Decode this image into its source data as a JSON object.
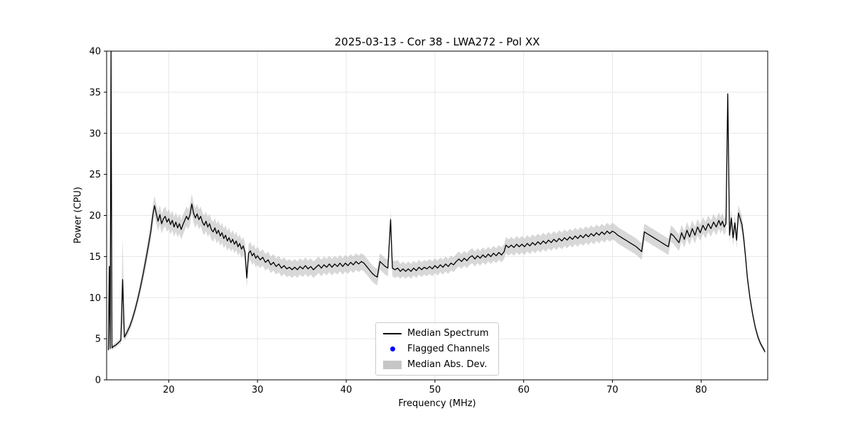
{
  "chart_data": {
    "type": "line",
    "title": "2025-03-13 - Cor 38 - LWA272 - Pol XX",
    "xlabel": "Frequency (MHz)",
    "ylabel": "Power (CPU)",
    "xlim": [
      13,
      87.5
    ],
    "ylim": [
      0,
      40
    ],
    "xticks": [
      20,
      30,
      40,
      50,
      60,
      70,
      80
    ],
    "yticks": [
      0,
      5,
      10,
      15,
      20,
      25,
      30,
      35,
      40
    ],
    "grid": true,
    "colors": {
      "line": "#000000",
      "band": "#b8b8b8",
      "flagged": "#0000ff",
      "grid": "#e8e8e8",
      "axis": "#000000"
    },
    "legend": {
      "position": "lower center",
      "entries": [
        "Median Spectrum",
        "Flagged Channels",
        "Median Abs. Dev."
      ]
    },
    "flagged_channels": {
      "x": [],
      "y": []
    },
    "points_format": [
      "freq_mhz",
      "power",
      "mad"
    ],
    "points": [
      [
        13.2,
        3.6,
        0.3
      ],
      [
        13.3,
        13.8,
        0.4
      ],
      [
        13.4,
        3.8,
        0.3
      ],
      [
        13.5,
        40.0,
        0.4
      ],
      [
        13.6,
        3.9,
        0.3
      ],
      [
        13.8,
        4.1,
        0.3
      ],
      [
        14.0,
        4.2,
        0.3
      ],
      [
        14.2,
        4.4,
        0.3
      ],
      [
        14.4,
        4.6,
        0.3
      ],
      [
        14.6,
        4.8,
        0.4
      ],
      [
        14.8,
        12.2,
        5.3
      ],
      [
        15.0,
        5.2,
        0.4
      ],
      [
        15.3,
        5.8,
        0.5
      ],
      [
        15.6,
        6.5,
        0.5
      ],
      [
        15.9,
        7.4,
        0.6
      ],
      [
        16.2,
        8.5,
        0.6
      ],
      [
        16.5,
        9.8,
        0.7
      ],
      [
        16.8,
        11.2,
        0.8
      ],
      [
        17.1,
        12.8,
        0.9
      ],
      [
        17.4,
        14.5,
        1.0
      ],
      [
        17.7,
        16.3,
        1.1
      ],
      [
        18.0,
        18.2,
        1.2
      ],
      [
        18.2,
        20.0,
        1.2
      ],
      [
        18.4,
        21.2,
        1.2
      ],
      [
        18.6,
        20.2,
        1.2
      ],
      [
        18.8,
        19.3,
        1.2
      ],
      [
        19.0,
        20.1,
        1.2
      ],
      [
        19.2,
        19.0,
        1.2
      ],
      [
        19.4,
        19.6,
        1.2
      ],
      [
        19.6,
        19.9,
        1.2
      ],
      [
        19.8,
        19.2,
        1.2
      ],
      [
        20.0,
        19.6,
        1.2
      ],
      [
        20.2,
        18.9,
        1.2
      ],
      [
        20.4,
        19.4,
        1.2
      ],
      [
        20.6,
        18.6,
        1.2
      ],
      [
        20.8,
        19.2,
        1.2
      ],
      [
        21.0,
        18.5,
        1.2
      ],
      [
        21.2,
        19.0,
        1.2
      ],
      [
        21.4,
        18.3,
        1.2
      ],
      [
        21.6,
        18.9,
        1.2
      ],
      [
        21.8,
        19.4,
        1.2
      ],
      [
        22.0,
        19.9,
        1.2
      ],
      [
        22.2,
        19.5,
        1.2
      ],
      [
        22.4,
        20.1,
        1.2
      ],
      [
        22.6,
        21.4,
        1.2
      ],
      [
        22.8,
        20.3,
        1.2
      ],
      [
        23.0,
        19.7,
        1.2
      ],
      [
        23.2,
        20.2,
        1.2
      ],
      [
        23.4,
        19.5,
        1.2
      ],
      [
        23.6,
        19.9,
        1.2
      ],
      [
        23.8,
        19.2,
        1.2
      ],
      [
        24.0,
        18.8,
        1.2
      ],
      [
        24.2,
        19.3,
        1.2
      ],
      [
        24.4,
        18.6,
        1.2
      ],
      [
        24.6,
        19.0,
        1.2
      ],
      [
        24.8,
        18.3,
        1.2
      ],
      [
        25.0,
        18.0,
        1.2
      ],
      [
        25.2,
        18.5,
        1.2
      ],
      [
        25.4,
        17.8,
        1.2
      ],
      [
        25.6,
        18.2,
        1.2
      ],
      [
        25.8,
        17.5,
        1.2
      ],
      [
        26.0,
        17.9,
        1.2
      ],
      [
        26.2,
        17.2,
        1.2
      ],
      [
        26.4,
        17.6,
        1.2
      ],
      [
        26.6,
        16.9,
        1.2
      ],
      [
        26.8,
        17.3,
        1.2
      ],
      [
        27.0,
        16.7,
        1.1
      ],
      [
        27.2,
        17.1,
        1.1
      ],
      [
        27.4,
        16.5,
        1.1
      ],
      [
        27.6,
        16.9,
        1.1
      ],
      [
        27.8,
        16.2,
        1.1
      ],
      [
        28.0,
        16.6,
        1.1
      ],
      [
        28.2,
        15.9,
        1.1
      ],
      [
        28.4,
        16.3,
        1.1
      ],
      [
        28.6,
        15.5,
        1.1
      ],
      [
        28.8,
        12.4,
        1.1
      ],
      [
        29.0,
        15.4,
        1.1
      ],
      [
        29.2,
        15.7,
        1.1
      ],
      [
        29.4,
        15.1,
        1.1
      ],
      [
        29.6,
        15.4,
        1.1
      ],
      [
        29.8,
        14.8,
        1.1
      ],
      [
        30.0,
        15.1,
        1.1
      ],
      [
        30.3,
        14.6,
        1.0
      ],
      [
        30.6,
        14.9,
        1.0
      ],
      [
        30.9,
        14.3,
        1.0
      ],
      [
        31.2,
        14.6,
        1.0
      ],
      [
        31.5,
        14.0,
        1.0
      ],
      [
        31.8,
        14.3,
        1.0
      ],
      [
        32.1,
        13.8,
        1.0
      ],
      [
        32.4,
        14.1,
        1.0
      ],
      [
        32.7,
        13.6,
        1.0
      ],
      [
        33.0,
        13.9,
        1.0
      ],
      [
        33.3,
        13.5,
        1.0
      ],
      [
        33.6,
        13.7,
        1.0
      ],
      [
        33.9,
        13.4,
        1.0
      ],
      [
        34.2,
        13.7,
        1.0
      ],
      [
        34.5,
        13.4,
        1.0
      ],
      [
        34.8,
        13.8,
        1.0
      ],
      [
        35.1,
        13.5,
        1.0
      ],
      [
        35.4,
        13.9,
        1.0
      ],
      [
        35.7,
        13.5,
        1.0
      ],
      [
        36.0,
        13.8,
        1.0
      ],
      [
        36.3,
        13.4,
        1.0
      ],
      [
        36.6,
        13.7,
        1.0
      ],
      [
        36.9,
        14.0,
        1.0
      ],
      [
        37.2,
        13.6,
        1.0
      ],
      [
        37.5,
        14.0,
        1.0
      ],
      [
        37.8,
        13.7,
        1.0
      ],
      [
        38.1,
        14.1,
        1.0
      ],
      [
        38.4,
        13.7,
        1.0
      ],
      [
        38.7,
        14.1,
        1.0
      ],
      [
        39.0,
        13.8,
        1.0
      ],
      [
        39.3,
        14.2,
        1.0
      ],
      [
        39.6,
        13.8,
        1.0
      ],
      [
        39.9,
        14.2,
        1.0
      ],
      [
        40.2,
        13.9,
        1.0
      ],
      [
        40.5,
        14.3,
        1.0
      ],
      [
        40.8,
        14.0,
        1.0
      ],
      [
        41.1,
        14.4,
        1.0
      ],
      [
        41.4,
        14.1,
        1.0
      ],
      [
        41.7,
        14.4,
        1.0
      ],
      [
        42.0,
        14.2,
        1.0
      ],
      [
        42.3,
        13.8,
        1.0
      ],
      [
        42.6,
        13.4,
        1.0
      ],
      [
        42.9,
        13.0,
        1.0
      ],
      [
        43.2,
        12.7,
        1.0
      ],
      [
        43.5,
        12.5,
        1.0
      ],
      [
        43.8,
        14.4,
        1.0
      ],
      [
        44.1,
        14.1,
        1.0
      ],
      [
        44.4,
        13.8,
        1.0
      ],
      [
        44.7,
        13.6,
        1.0
      ],
      [
        45.0,
        19.5,
        1.2
      ],
      [
        45.2,
        13.6,
        1.0
      ],
      [
        45.5,
        13.4,
        1.0
      ],
      [
        45.8,
        13.6,
        1.0
      ],
      [
        46.1,
        13.2,
        0.9
      ],
      [
        46.4,
        13.5,
        0.9
      ],
      [
        46.7,
        13.2,
        0.9
      ],
      [
        47.0,
        13.5,
        0.9
      ],
      [
        47.3,
        13.2,
        0.9
      ],
      [
        47.6,
        13.6,
        0.9
      ],
      [
        47.9,
        13.3,
        0.9
      ],
      [
        48.2,
        13.7,
        0.9
      ],
      [
        48.5,
        13.4,
        0.9
      ],
      [
        48.8,
        13.7,
        0.9
      ],
      [
        49.1,
        13.5,
        0.9
      ],
      [
        49.4,
        13.8,
        0.9
      ],
      [
        49.7,
        13.5,
        0.9
      ],
      [
        50.0,
        13.9,
        0.9
      ],
      [
        50.3,
        13.6,
        0.9
      ],
      [
        50.6,
        14.0,
        0.9
      ],
      [
        50.9,
        13.7,
        0.9
      ],
      [
        51.2,
        14.1,
        0.9
      ],
      [
        51.5,
        13.8,
        0.9
      ],
      [
        51.8,
        14.2,
        0.9
      ],
      [
        52.1,
        14.0,
        0.9
      ],
      [
        52.4,
        14.4,
        0.9
      ],
      [
        52.7,
        14.7,
        0.9
      ],
      [
        53.0,
        14.4,
        0.9
      ],
      [
        53.3,
        14.8,
        0.9
      ],
      [
        53.6,
        14.5,
        0.9
      ],
      [
        53.9,
        14.9,
        0.9
      ],
      [
        54.2,
        15.1,
        0.9
      ],
      [
        54.5,
        14.7,
        0.9
      ],
      [
        54.8,
        15.1,
        0.9
      ],
      [
        55.1,
        14.8,
        0.9
      ],
      [
        55.4,
        15.2,
        0.9
      ],
      [
        55.7,
        14.9,
        0.9
      ],
      [
        56.0,
        15.3,
        0.9
      ],
      [
        56.3,
        15.0,
        0.9
      ],
      [
        56.6,
        15.4,
        0.9
      ],
      [
        56.9,
        15.1,
        0.9
      ],
      [
        57.2,
        15.5,
        0.9
      ],
      [
        57.5,
        15.2,
        0.9
      ],
      [
        57.8,
        15.6,
        0.9
      ],
      [
        58.0,
        16.4,
        1.0
      ],
      [
        58.3,
        16.1,
        1.0
      ],
      [
        58.6,
        16.4,
        1.0
      ],
      [
        58.9,
        16.1,
        1.0
      ],
      [
        59.2,
        16.5,
        1.0
      ],
      [
        59.5,
        16.2,
        1.0
      ],
      [
        59.8,
        16.5,
        1.0
      ],
      [
        60.1,
        16.2,
        1.0
      ],
      [
        60.4,
        16.6,
        1.0
      ],
      [
        60.7,
        16.3,
        1.0
      ],
      [
        61.0,
        16.7,
        1.0
      ],
      [
        61.3,
        16.4,
        1.0
      ],
      [
        61.6,
        16.8,
        1.0
      ],
      [
        61.9,
        16.5,
        1.0
      ],
      [
        62.2,
        16.9,
        1.0
      ],
      [
        62.5,
        16.6,
        1.0
      ],
      [
        62.8,
        17.0,
        1.0
      ],
      [
        63.1,
        16.7,
        1.0
      ],
      [
        63.4,
        17.1,
        1.0
      ],
      [
        63.7,
        16.8,
        1.0
      ],
      [
        64.0,
        17.2,
        1.0
      ],
      [
        64.3,
        16.9,
        1.0
      ],
      [
        64.6,
        17.3,
        1.0
      ],
      [
        64.9,
        17.0,
        1.0
      ],
      [
        65.2,
        17.4,
        1.0
      ],
      [
        65.5,
        17.1,
        1.0
      ],
      [
        65.8,
        17.5,
        1.0
      ],
      [
        66.1,
        17.2,
        1.0
      ],
      [
        66.4,
        17.6,
        1.0
      ],
      [
        66.7,
        17.3,
        1.0
      ],
      [
        67.0,
        17.7,
        1.0
      ],
      [
        67.3,
        17.4,
        1.0
      ],
      [
        67.6,
        17.8,
        1.0
      ],
      [
        67.9,
        17.5,
        1.0
      ],
      [
        68.2,
        17.9,
        1.0
      ],
      [
        68.5,
        17.6,
        1.0
      ],
      [
        68.8,
        18.0,
        1.0
      ],
      [
        69.1,
        17.7,
        1.0
      ],
      [
        69.4,
        18.1,
        1.0
      ],
      [
        69.7,
        17.8,
        1.0
      ],
      [
        70.0,
        18.1,
        1.0
      ],
      [
        70.3,
        17.9,
        1.0
      ],
      [
        70.6,
        17.6,
        1.0
      ],
      [
        70.9,
        17.4,
        1.0
      ],
      [
        71.2,
        17.2,
        1.0
      ],
      [
        71.5,
        17.0,
        1.0
      ],
      [
        71.8,
        16.8,
        1.0
      ],
      [
        72.1,
        16.6,
        1.0
      ],
      [
        72.4,
        16.4,
        1.0
      ],
      [
        72.7,
        16.2,
        1.0
      ],
      [
        73.0,
        15.9,
        1.0
      ],
      [
        73.3,
        15.6,
        1.0
      ],
      [
        73.6,
        18.0,
        1.0
      ],
      [
        73.9,
        17.8,
        1.0
      ],
      [
        74.2,
        17.6,
        1.0
      ],
      [
        74.5,
        17.4,
        1.0
      ],
      [
        74.8,
        17.2,
        1.0
      ],
      [
        75.1,
        17.0,
        1.0
      ],
      [
        75.4,
        16.8,
        1.0
      ],
      [
        75.7,
        16.6,
        1.0
      ],
      [
        76.0,
        16.4,
        1.0
      ],
      [
        76.3,
        16.2,
        1.0
      ],
      [
        76.6,
        17.8,
        1.0
      ],
      [
        76.9,
        17.5,
        1.0
      ],
      [
        77.2,
        17.1,
        1.0
      ],
      [
        77.5,
        16.7,
        1.0
      ],
      [
        77.8,
        17.9,
        1.0
      ],
      [
        78.1,
        17.1,
        1.0
      ],
      [
        78.4,
        18.2,
        1.0
      ],
      [
        78.7,
        17.4,
        1.0
      ],
      [
        79.0,
        18.4,
        1.0
      ],
      [
        79.3,
        17.6,
        1.0
      ],
      [
        79.6,
        18.6,
        1.0
      ],
      [
        79.9,
        17.9,
        1.0
      ],
      [
        80.2,
        18.8,
        1.0
      ],
      [
        80.5,
        18.2,
        1.0
      ],
      [
        80.8,
        19.0,
        1.0
      ],
      [
        81.1,
        18.4,
        1.0
      ],
      [
        81.4,
        19.2,
        1.0
      ],
      [
        81.7,
        18.6,
        1.0
      ],
      [
        82.0,
        19.4,
        1.0
      ],
      [
        82.2,
        18.8,
        1.0
      ],
      [
        82.4,
        19.3,
        1.0
      ],
      [
        82.6,
        18.6,
        1.0
      ],
      [
        82.8,
        19.0,
        1.0
      ],
      [
        83.0,
        34.8,
        1.1
      ],
      [
        83.2,
        17.6,
        1.0
      ],
      [
        83.4,
        19.7,
        1.0
      ],
      [
        83.6,
        17.3,
        1.0
      ],
      [
        83.8,
        19.1,
        1.0
      ],
      [
        84.0,
        17.0,
        1.0
      ],
      [
        84.2,
        20.3,
        1.0
      ],
      [
        84.4,
        19.6,
        1.0
      ],
      [
        84.6,
        18.9,
        1.0
      ],
      [
        84.8,
        17.2,
        0.9
      ],
      [
        85.0,
        15.0,
        0.8
      ],
      [
        85.2,
        12.5,
        0.7
      ],
      [
        85.5,
        10.0,
        0.6
      ],
      [
        85.8,
        8.0,
        0.5
      ],
      [
        86.1,
        6.4,
        0.4
      ],
      [
        86.4,
        5.2,
        0.4
      ],
      [
        86.7,
        4.4,
        0.3
      ],
      [
        87.0,
        3.8,
        0.3
      ],
      [
        87.2,
        3.4,
        0.3
      ]
    ]
  }
}
